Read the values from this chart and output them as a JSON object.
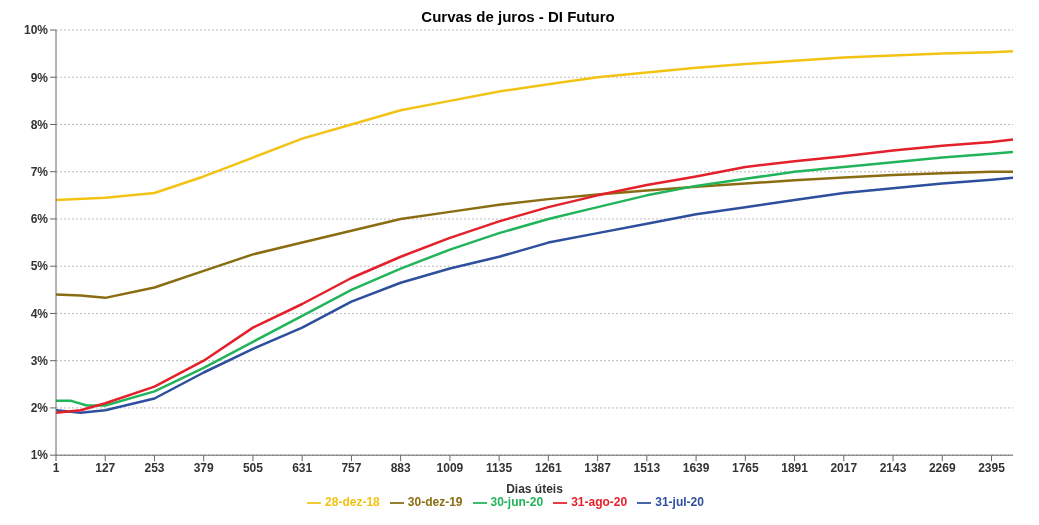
{
  "chart_data": {
    "type": "line",
    "title": "Curvas de juros - DI Futuro",
    "xlabel": "Dias úteis",
    "xlim": [
      1,
      2450
    ],
    "xticks": [
      1,
      127,
      253,
      379,
      505,
      631,
      757,
      883,
      1009,
      1135,
      1261,
      1387,
      1513,
      1639,
      1765,
      1891,
      2017,
      2143,
      2269,
      2395
    ],
    "ylim": [
      1,
      10
    ],
    "yticks": [
      {
        "value": 1,
        "label": "1%"
      },
      {
        "value": 2,
        "label": "2%"
      },
      {
        "value": 3,
        "label": "3%"
      },
      {
        "value": 4,
        "label": "4%"
      },
      {
        "value": 5,
        "label": "5%"
      },
      {
        "value": 6,
        "label": "6%"
      },
      {
        "value": 7,
        "label": "7%"
      },
      {
        "value": 8,
        "label": "8%"
      },
      {
        "value": 9,
        "label": "9%"
      },
      {
        "value": 10,
        "label": "10%"
      }
    ],
    "grid": "y",
    "legend": "bottom",
    "marker": "none",
    "line_style": "solid",
    "series": [
      {
        "name": "28-dez-18",
        "color": "#f2c314",
        "x": [
          1,
          127,
          253,
          379,
          505,
          631,
          757,
          883,
          1009,
          1135,
          1261,
          1387,
          1513,
          1639,
          1765,
          1891,
          2017,
          2143,
          2269,
          2395,
          2450
        ],
        "values": [
          6.4,
          6.45,
          6.55,
          6.9,
          7.3,
          7.7,
          8.0,
          8.3,
          8.5,
          8.7,
          8.85,
          9.0,
          9.1,
          9.2,
          9.28,
          9.35,
          9.42,
          9.46,
          9.5,
          9.53,
          9.55
        ]
      },
      {
        "name": "30-dez-19",
        "color": "#8a6d12",
        "x": [
          1,
          64,
          127,
          253,
          379,
          505,
          631,
          757,
          883,
          1009,
          1135,
          1261,
          1387,
          1513,
          1639,
          1765,
          1891,
          2017,
          2143,
          2269,
          2395,
          2450
        ],
        "values": [
          4.4,
          4.38,
          4.33,
          4.55,
          4.9,
          5.25,
          5.5,
          5.75,
          6.0,
          6.15,
          6.3,
          6.42,
          6.52,
          6.6,
          6.68,
          6.75,
          6.82,
          6.88,
          6.93,
          6.97,
          7.0,
          7.0
        ]
      },
      {
        "name": "30-jun-20",
        "color": "#22b45a",
        "x": [
          1,
          40,
          80,
          127,
          253,
          379,
          505,
          631,
          757,
          883,
          1009,
          1135,
          1261,
          1387,
          1513,
          1639,
          1765,
          1891,
          2017,
          2143,
          2269,
          2395,
          2450
        ],
        "values": [
          2.15,
          2.15,
          2.05,
          2.05,
          2.35,
          2.85,
          3.4,
          3.95,
          4.5,
          4.95,
          5.35,
          5.7,
          6.0,
          6.25,
          6.5,
          6.7,
          6.85,
          7.0,
          7.1,
          7.2,
          7.3,
          7.38,
          7.42
        ]
      },
      {
        "name": "31-jul-20",
        "color": "#2e4f9e",
        "x": [
          1,
          64,
          127,
          253,
          379,
          505,
          631,
          757,
          883,
          1009,
          1135,
          1261,
          1387,
          1513,
          1639,
          1765,
          1891,
          2017,
          2143,
          2269,
          2395,
          2450
        ],
        "values": [
          1.95,
          1.9,
          1.95,
          2.2,
          2.75,
          3.25,
          3.7,
          4.25,
          4.65,
          4.95,
          5.2,
          5.5,
          5.7,
          5.9,
          6.1,
          6.25,
          6.4,
          6.55,
          6.65,
          6.75,
          6.83,
          6.87
        ]
      },
      {
        "name": "31-ago-20",
        "color": "#e4212b",
        "x": [
          1,
          64,
          127,
          253,
          379,
          505,
          631,
          757,
          883,
          1009,
          1135,
          1261,
          1387,
          1513,
          1639,
          1765,
          1891,
          2017,
          2143,
          2269,
          2395,
          2450
        ],
        "values": [
          1.9,
          1.95,
          2.1,
          2.45,
          3.0,
          3.7,
          4.2,
          4.75,
          5.2,
          5.6,
          5.95,
          6.25,
          6.5,
          6.72,
          6.9,
          7.1,
          7.22,
          7.33,
          7.45,
          7.55,
          7.63,
          7.68
        ]
      }
    ]
  }
}
